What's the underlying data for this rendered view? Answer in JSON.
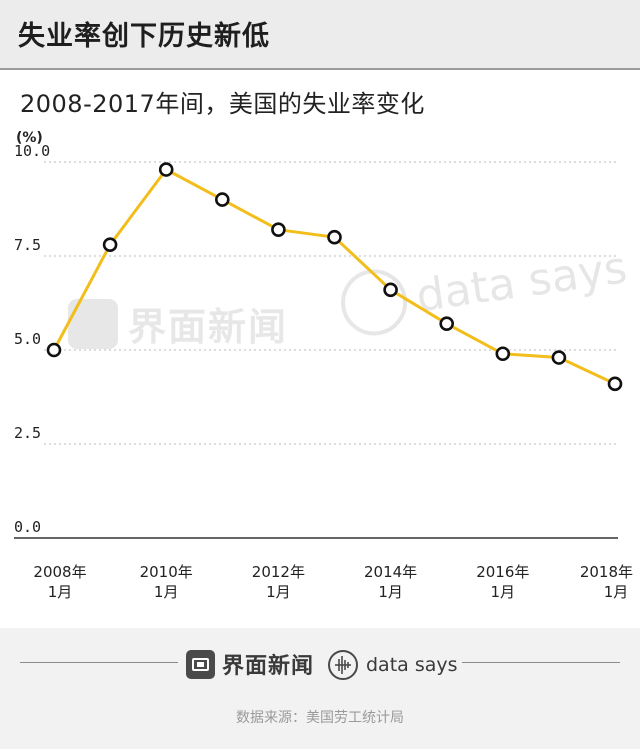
{
  "header": {
    "title": "失业率创下历史新低"
  },
  "subtitle": "2008-2017年间，美国的失业率变化",
  "watermarks": {
    "jiemian": "界面新闻",
    "datasays": "data says"
  },
  "footer": {
    "brand_jiemian": "界面新闻",
    "brand_datasays": "data says",
    "source": "数据来源：美国劳工统计局"
  },
  "colors": {
    "line": "#f2be1c",
    "marker_edge": "#111111",
    "marker_fill": "#ffffff",
    "grid": "#bbbbbb"
  },
  "icons": {
    "jiemian_logo": "jiemian-logo-icon",
    "datasays_logo": "datasays-logo-icon"
  },
  "chart_data": {
    "type": "line",
    "title": "2008-2017年间，美国的失业率变化",
    "ylabel": "(%)",
    "xlabel": "",
    "ylim": [
      0,
      10
    ],
    "yticks": [
      "0.0",
      "2.5",
      "5.0",
      "7.5",
      "10.0"
    ],
    "grid": true,
    "x": [
      "2008-01",
      "2009-01",
      "2010-01",
      "2011-01",
      "2012-01",
      "2013-01",
      "2014-01",
      "2015-01",
      "2016-01",
      "2017-01",
      "2018-01"
    ],
    "xtick_labels": [
      {
        "x": "2008-01",
        "line1": "2008年",
        "line2": "1月"
      },
      {
        "x": "2010-01",
        "line1": "2010年",
        "line2": "1月"
      },
      {
        "x": "2012-01",
        "line1": "2012年",
        "line2": "1月"
      },
      {
        "x": "2014-01",
        "line1": "2014年",
        "line2": "1月"
      },
      {
        "x": "2016-01",
        "line1": "2016年",
        "line2": "1月"
      },
      {
        "x": "2018-01",
        "line1": "2018年",
        "line2": "1月"
      }
    ],
    "series": [
      {
        "values": [
          5.0,
          7.8,
          9.8,
          9.0,
          8.2,
          8.0,
          6.6,
          5.7,
          4.9,
          4.8,
          4.1
        ]
      }
    ]
  }
}
